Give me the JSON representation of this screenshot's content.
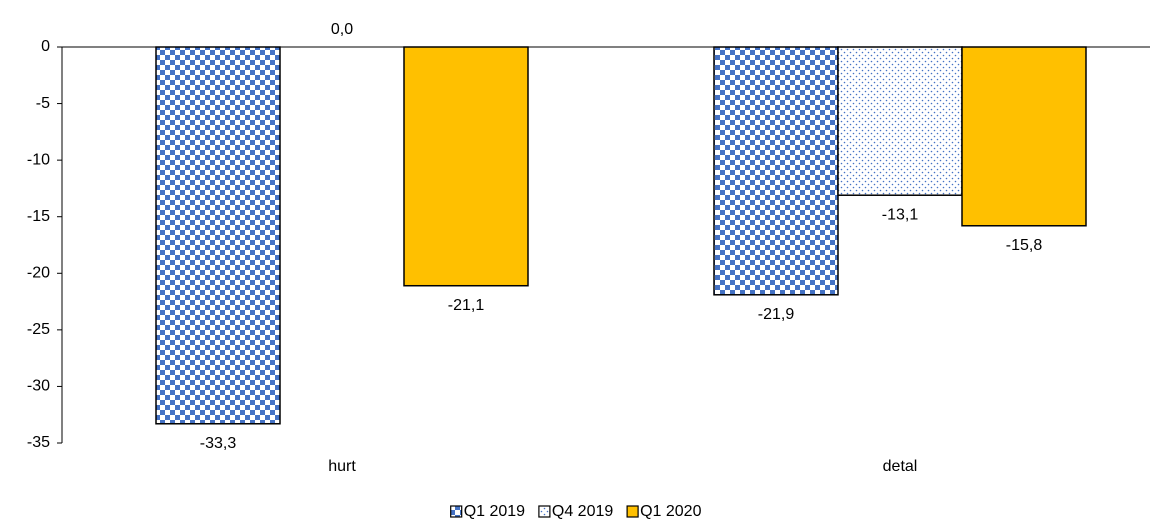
{
  "chart_data": {
    "type": "bar",
    "categories": [
      "hurt",
      "detal"
    ],
    "series": [
      {
        "name": "Q1 2019",
        "color": "#4472c4",
        "pattern": "checker",
        "values": [
          -33.3,
          -21.9
        ],
        "value_labels": [
          "-33,3",
          "-21,9"
        ]
      },
      {
        "name": "Q4 2019",
        "color": "#4472c4",
        "pattern": "dots",
        "values": [
          0.0,
          -13.1
        ],
        "value_labels": [
          "0,0",
          "-13,1"
        ]
      },
      {
        "name": "Q1 2020",
        "color": "#ffc000",
        "pattern": "solid",
        "values": [
          -21.1,
          -15.8
        ],
        "value_labels": [
          "-21,1",
          "-15,8"
        ]
      }
    ],
    "ylim": [
      -35,
      0
    ],
    "yticks": [
      0,
      -5,
      -10,
      -15,
      -20,
      -25,
      -30,
      -35
    ],
    "grid": false,
    "legend": "bottom"
  }
}
